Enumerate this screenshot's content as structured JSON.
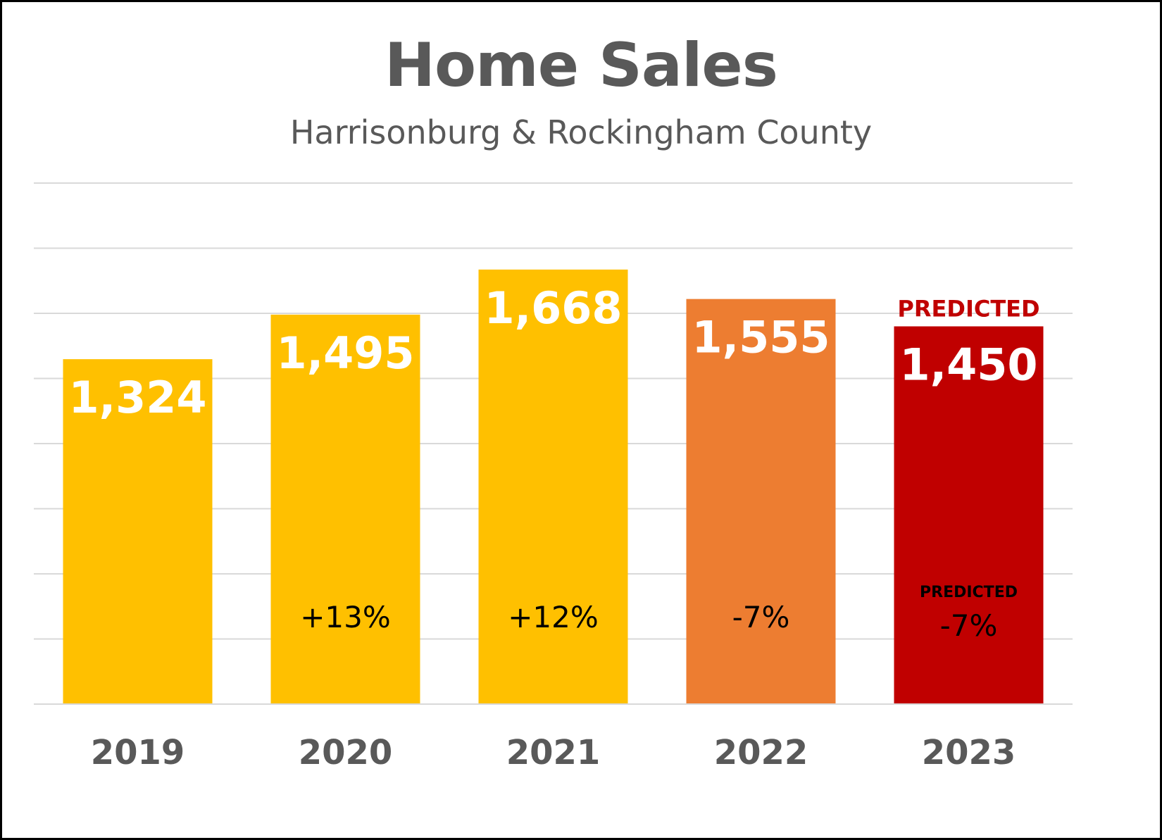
{
  "chart_data": {
    "type": "bar",
    "title": "Home Sales",
    "subtitle": "Harrisonburg & Rockingham County",
    "categories": [
      "2019",
      "2020",
      "2021",
      "2022",
      "2023"
    ],
    "values": [
      1324,
      1495,
      1668,
      1555,
      1450
    ],
    "value_labels": [
      "1,324",
      "1,495",
      "1,668",
      "1,555",
      "1,450"
    ],
    "change_labels": [
      "",
      "+13%",
      "+12%",
      "-7%",
      "-7%"
    ],
    "bar_colors": [
      "#FFC000",
      "#FFC000",
      "#FFC000",
      "#ED7D31",
      "#C00000"
    ],
    "predicted_top_label": "PREDICTED",
    "predicted_change_label": "PREDICTED",
    "predicted_color": "#C00000",
    "ylim": [
      0,
      2000
    ],
    "gridlines": true,
    "legend": "none",
    "xlabel": "",
    "ylabel": ""
  }
}
